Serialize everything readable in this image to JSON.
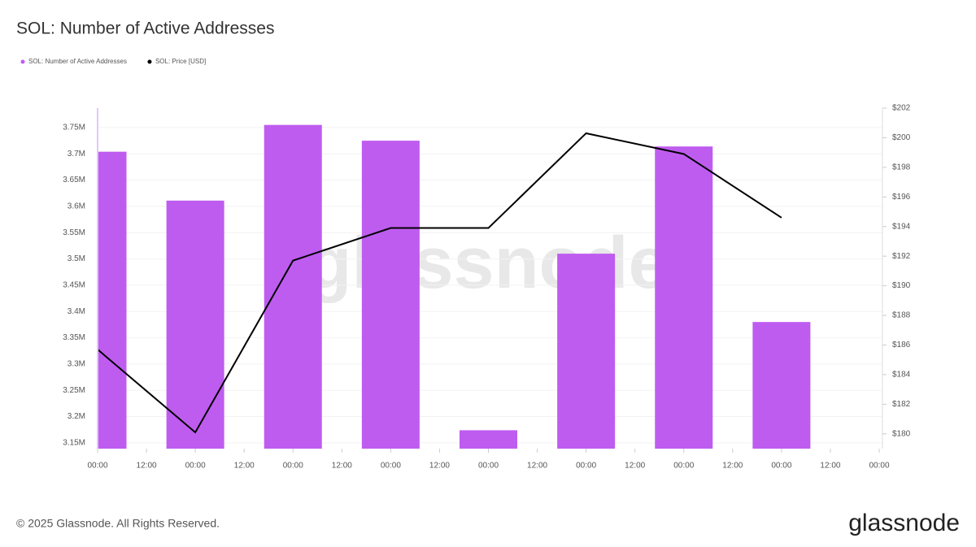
{
  "chart_data": {
    "type": "bar-line",
    "title": "SOL: Number of Active Addresses",
    "watermark": "glassnode",
    "footer": "© 2025 Glassnode. All Rights Reserved.",
    "logo": "glassnode",
    "x": [
      0,
      24,
      48,
      72,
      96,
      120,
      144,
      168
    ],
    "xlim": [
      0,
      192
    ],
    "xticks": [
      {
        "value": 0,
        "label": "00:00"
      },
      {
        "value": 12,
        "label": "12:00"
      },
      {
        "value": 24,
        "label": "00:00"
      },
      {
        "value": 36,
        "label": "12:00"
      },
      {
        "value": 48,
        "label": "00:00"
      },
      {
        "value": 60,
        "label": "12:00"
      },
      {
        "value": 72,
        "label": "00:00"
      },
      {
        "value": 84,
        "label": "12:00"
      },
      {
        "value": 96,
        "label": "00:00"
      },
      {
        "value": 108,
        "label": "12:00"
      },
      {
        "value": 120,
        "label": "00:00"
      },
      {
        "value": 132,
        "label": "12:00"
      },
      {
        "value": 144,
        "label": "00:00"
      },
      {
        "value": 156,
        "label": "12:00"
      },
      {
        "value": 168,
        "label": "00:00"
      },
      {
        "value": 180,
        "label": "12:00"
      },
      {
        "value": 192,
        "label": "00:00"
      }
    ],
    "ylim": [
      3139000,
      3787000
    ],
    "yticks": [
      {
        "value": 3150000,
        "label": "3.15M"
      },
      {
        "value": 3200000,
        "label": "3.2M"
      },
      {
        "value": 3250000,
        "label": "3.25M"
      },
      {
        "value": 3300000,
        "label": "3.3M"
      },
      {
        "value": 3350000,
        "label": "3.35M"
      },
      {
        "value": 3400000,
        "label": "3.4M"
      },
      {
        "value": 3450000,
        "label": "3.45M"
      },
      {
        "value": 3500000,
        "label": "3.5M"
      },
      {
        "value": 3550000,
        "label": "3.55M"
      },
      {
        "value": 3600000,
        "label": "3.6M"
      },
      {
        "value": 3650000,
        "label": "3.65M"
      },
      {
        "value": 3700000,
        "label": "3.7M"
      },
      {
        "value": 3750000,
        "label": "3.75M"
      }
    ],
    "y2lim": [
      179,
      202
    ],
    "y2ticks": [
      {
        "value": 180,
        "label": "$180"
      },
      {
        "value": 182,
        "label": "$182"
      },
      {
        "value": 184,
        "label": "$184"
      },
      {
        "value": 186,
        "label": "$186"
      },
      {
        "value": 188,
        "label": "$188"
      },
      {
        "value": 190,
        "label": "$190"
      },
      {
        "value": 192,
        "label": "$192"
      },
      {
        "value": 194,
        "label": "$194"
      },
      {
        "value": 196,
        "label": "$196"
      },
      {
        "value": 198,
        "label": "$198"
      },
      {
        "value": 200,
        "label": "$200"
      },
      {
        "value": 202,
        "label": "$202"
      }
    ],
    "grid": true,
    "series": [
      {
        "name": "SOL: Number of Active Addresses",
        "kind": "bar",
        "color": "#bf5cf0",
        "values": [
          3704000,
          3611000,
          3755000,
          3725000,
          3174000,
          3510000,
          3714000,
          3380000
        ]
      },
      {
        "name": "SOL: Price [USD]",
        "kind": "line",
        "axis": "y2",
        "color": "#000000",
        "values": [
          185.7,
          180.1,
          191.7,
          193.9,
          193.9,
          200.3,
          198.9,
          194.6
        ]
      }
    ]
  }
}
